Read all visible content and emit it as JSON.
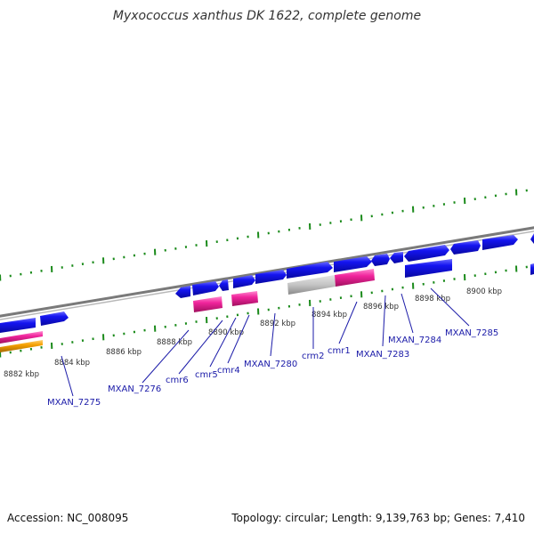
{
  "header": {
    "title": "Myxococcus xanthus DK 1622, complete genome"
  },
  "footer": {
    "accession": "Accession: NC_008095",
    "stats": "Topology: circular; Length: 9,139,763 bp; Genes: 7,410"
  },
  "colors": {
    "cds": "#1010e6",
    "rna_pink": "#f0249c",
    "rrna_orange": "#f5a000",
    "pseudo_gray": "#c0c0c0",
    "tick_green": "#1a8a1a",
    "backbone": "#8a8a8a",
    "label_blue": "#1a1aa8"
  },
  "ticks": {
    "labels": [
      "8882 kbp",
      "8884 kbp",
      "8886 kbp",
      "8888 kbp",
      "8890 kbp",
      "8892 kbp",
      "8894 kbp",
      "8896 kbp",
      "8898 kbp",
      "8900 kbp"
    ]
  },
  "genes": {
    "labels": [
      "MXAN_7275",
      "MXAN_7276",
      "cmr6",
      "cmr5",
      "cmr4",
      "MXAN_7280",
      "crm2",
      "cmr1",
      "MXAN_7283",
      "MXAN_7284",
      "MXAN_7285"
    ]
  }
}
